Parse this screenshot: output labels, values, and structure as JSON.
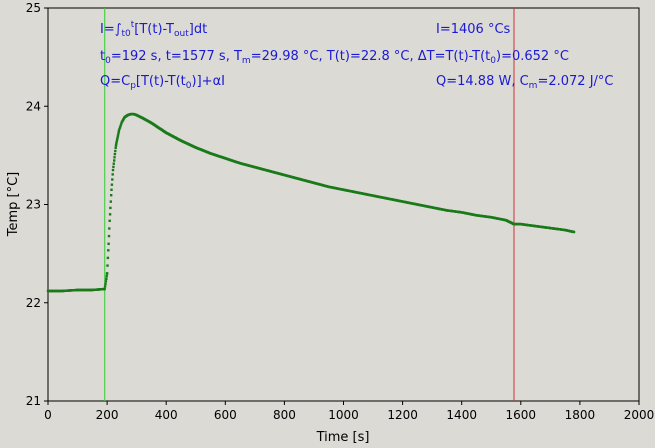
{
  "chart_data": {
    "type": "scatter",
    "xlabel": "Time [s]",
    "ylabel": "Temp [°C]",
    "xlim": [
      0,
      2000
    ],
    "ylim": [
      21,
      25
    ],
    "xticks": [
      "0",
      "200",
      "400",
      "600",
      "800",
      "1000",
      "1200",
      "1400",
      "1600",
      "1800",
      "2000"
    ],
    "yticks": [
      "21",
      "22",
      "23",
      "24",
      "25"
    ],
    "grid": false,
    "series": [
      {
        "color": "#1a7a1a",
        "x": [
          0,
          50,
          100,
          150,
          192,
          200,
          205,
          210,
          215,
          220,
          230,
          240,
          250,
          260,
          270,
          280,
          290,
          300,
          320,
          350,
          400,
          450,
          500,
          550,
          600,
          650,
          700,
          750,
          800,
          850,
          900,
          950,
          1000,
          1050,
          1100,
          1150,
          1200,
          1250,
          1300,
          1350,
          1400,
          1450,
          1500,
          1550,
          1577,
          1600,
          1650,
          1700,
          1750,
          1780
        ],
        "y": [
          22.12,
          22.12,
          22.13,
          22.13,
          22.14,
          22.3,
          22.6,
          22.9,
          23.15,
          23.35,
          23.6,
          23.75,
          23.84,
          23.89,
          23.91,
          23.92,
          23.92,
          23.91,
          23.88,
          23.83,
          23.73,
          23.65,
          23.58,
          23.52,
          23.47,
          23.42,
          23.38,
          23.34,
          23.3,
          23.26,
          23.22,
          23.18,
          23.15,
          23.12,
          23.09,
          23.06,
          23.03,
          23.0,
          22.97,
          22.94,
          22.92,
          22.89,
          22.87,
          22.84,
          22.8,
          22.8,
          22.78,
          22.76,
          22.74,
          22.72
        ]
      }
    ],
    "vlines": [
      {
        "x": 192,
        "color": "#33cc33"
      },
      {
        "x": 1577,
        "color": "#cc3333"
      }
    ]
  },
  "annotations": {
    "line1_left": "I=∫",
    "line1_sub_t0": "t0",
    "line1_sup_t": "t",
    "line1_rest": "[T(t)-T",
    "line1_sub_out": "out",
    "line1_end": "]dt",
    "line1_right": "I=1406 °Cs",
    "line2_t0_label": "t",
    "line2_t0_sub": "0",
    "line2_t0_val": "=192 s,   t=1577 s,   T",
    "line2_tm_sub": "m",
    "line2_tm_val": "=29.98 °C,  T(t)=22.8 °C,  ΔT=T(t)-T(t",
    "line2_dt_sub": "0",
    "line2_dt_val": ")=0.652 °C",
    "line3_left_a": "Q=C",
    "line3_left_sub": "p",
    "line3_left_b": "[T(t)-T(t",
    "line3_left_sub2": "0",
    "line3_left_c": ")]+αI",
    "line3_right_a": "Q=14.88 W,   C",
    "line3_right_sub": "m",
    "line3_right_b": "=2.072 J/°C"
  }
}
